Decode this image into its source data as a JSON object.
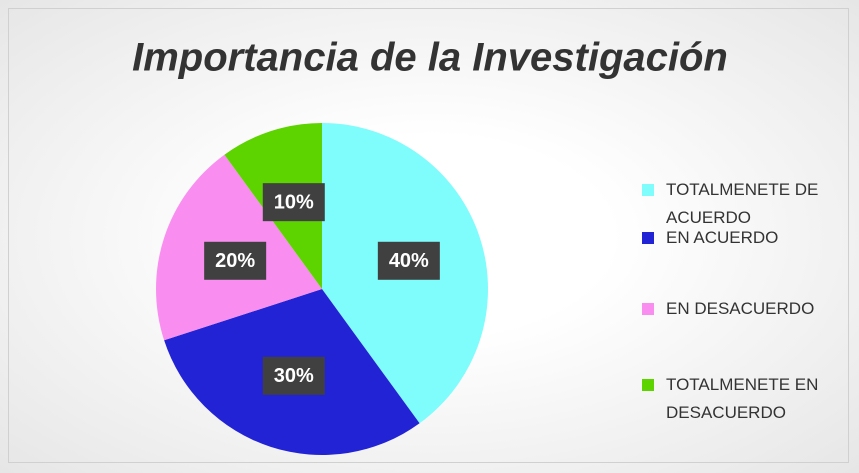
{
  "chart_data": {
    "type": "pie",
    "title": "Importancia de la Investigación",
    "categories": [
      "TOTALMENETE DE ACUERDO",
      "EN ACUERDO",
      "EN DESACUERDO",
      "TOTALMENETE EN DESACUERDO"
    ],
    "values": [
      40,
      30,
      20,
      10
    ],
    "value_labels": [
      "40%",
      "30%",
      "20%",
      "10%"
    ],
    "colors": [
      "#7ffcfc",
      "#2323d6",
      "#f98ef0",
      "#5dd300"
    ],
    "legend": "right"
  }
}
